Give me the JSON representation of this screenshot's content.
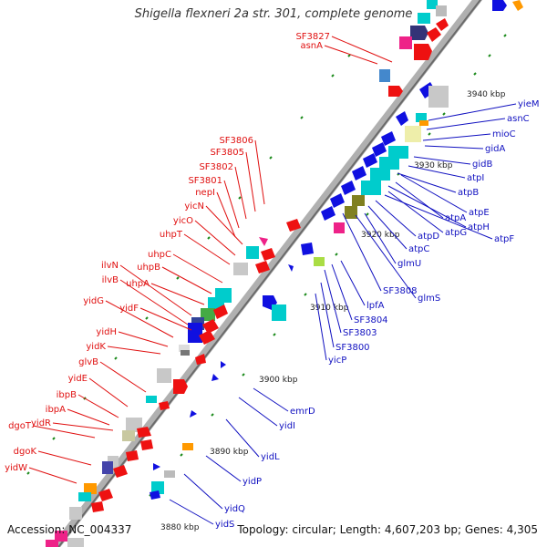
{
  "title": "Shigella flexneri 2a str. 301, complete genome",
  "footer": {
    "accession": "Accession: NC_004337",
    "summary": "Topology: circular; Length: 4,607,203 bp; Genes: 4,305"
  },
  "colors": {
    "backbone": "#9a9a9a",
    "label_left": "#e01010",
    "label_right": "#1010c0",
    "tick": "#1a8a1a"
  },
  "kbp_ticks": [
    "3880 kbp",
    "3890 kbp",
    "3900 kbp",
    "3910 kbp",
    "3920 kbp",
    "3930 kbp",
    "3940 kbp"
  ],
  "left_labels": [
    "SF3827",
    "asnA",
    "SF3806",
    "SF3805",
    "SF3802",
    "SF3801",
    "nepI",
    "yicN",
    "yicO",
    "uhpT",
    "uhpC",
    "ilvN",
    "uhpB",
    "ilvB",
    "uhpA",
    "yidG",
    "yidF",
    "yidH",
    "yidK",
    "glvB",
    "yidE",
    "ibpB",
    "ibpA",
    "dgoT",
    "yidR",
    "dgoK",
    "yidW"
  ],
  "right_labels": [
    "yieM",
    "asnC",
    "mioC",
    "gidA",
    "gidB",
    "atpI",
    "atpB",
    "atpE",
    "atpA",
    "atpH",
    "atpG",
    "atpF",
    "atpD",
    "atpC",
    "glmU",
    "SF3808",
    "glmS",
    "lpfA",
    "SF3804",
    "SF3803",
    "SF3800",
    "yicP",
    "emrD",
    "yidI",
    "yidL",
    "yidP",
    "yidQ",
    "yidS"
  ]
}
